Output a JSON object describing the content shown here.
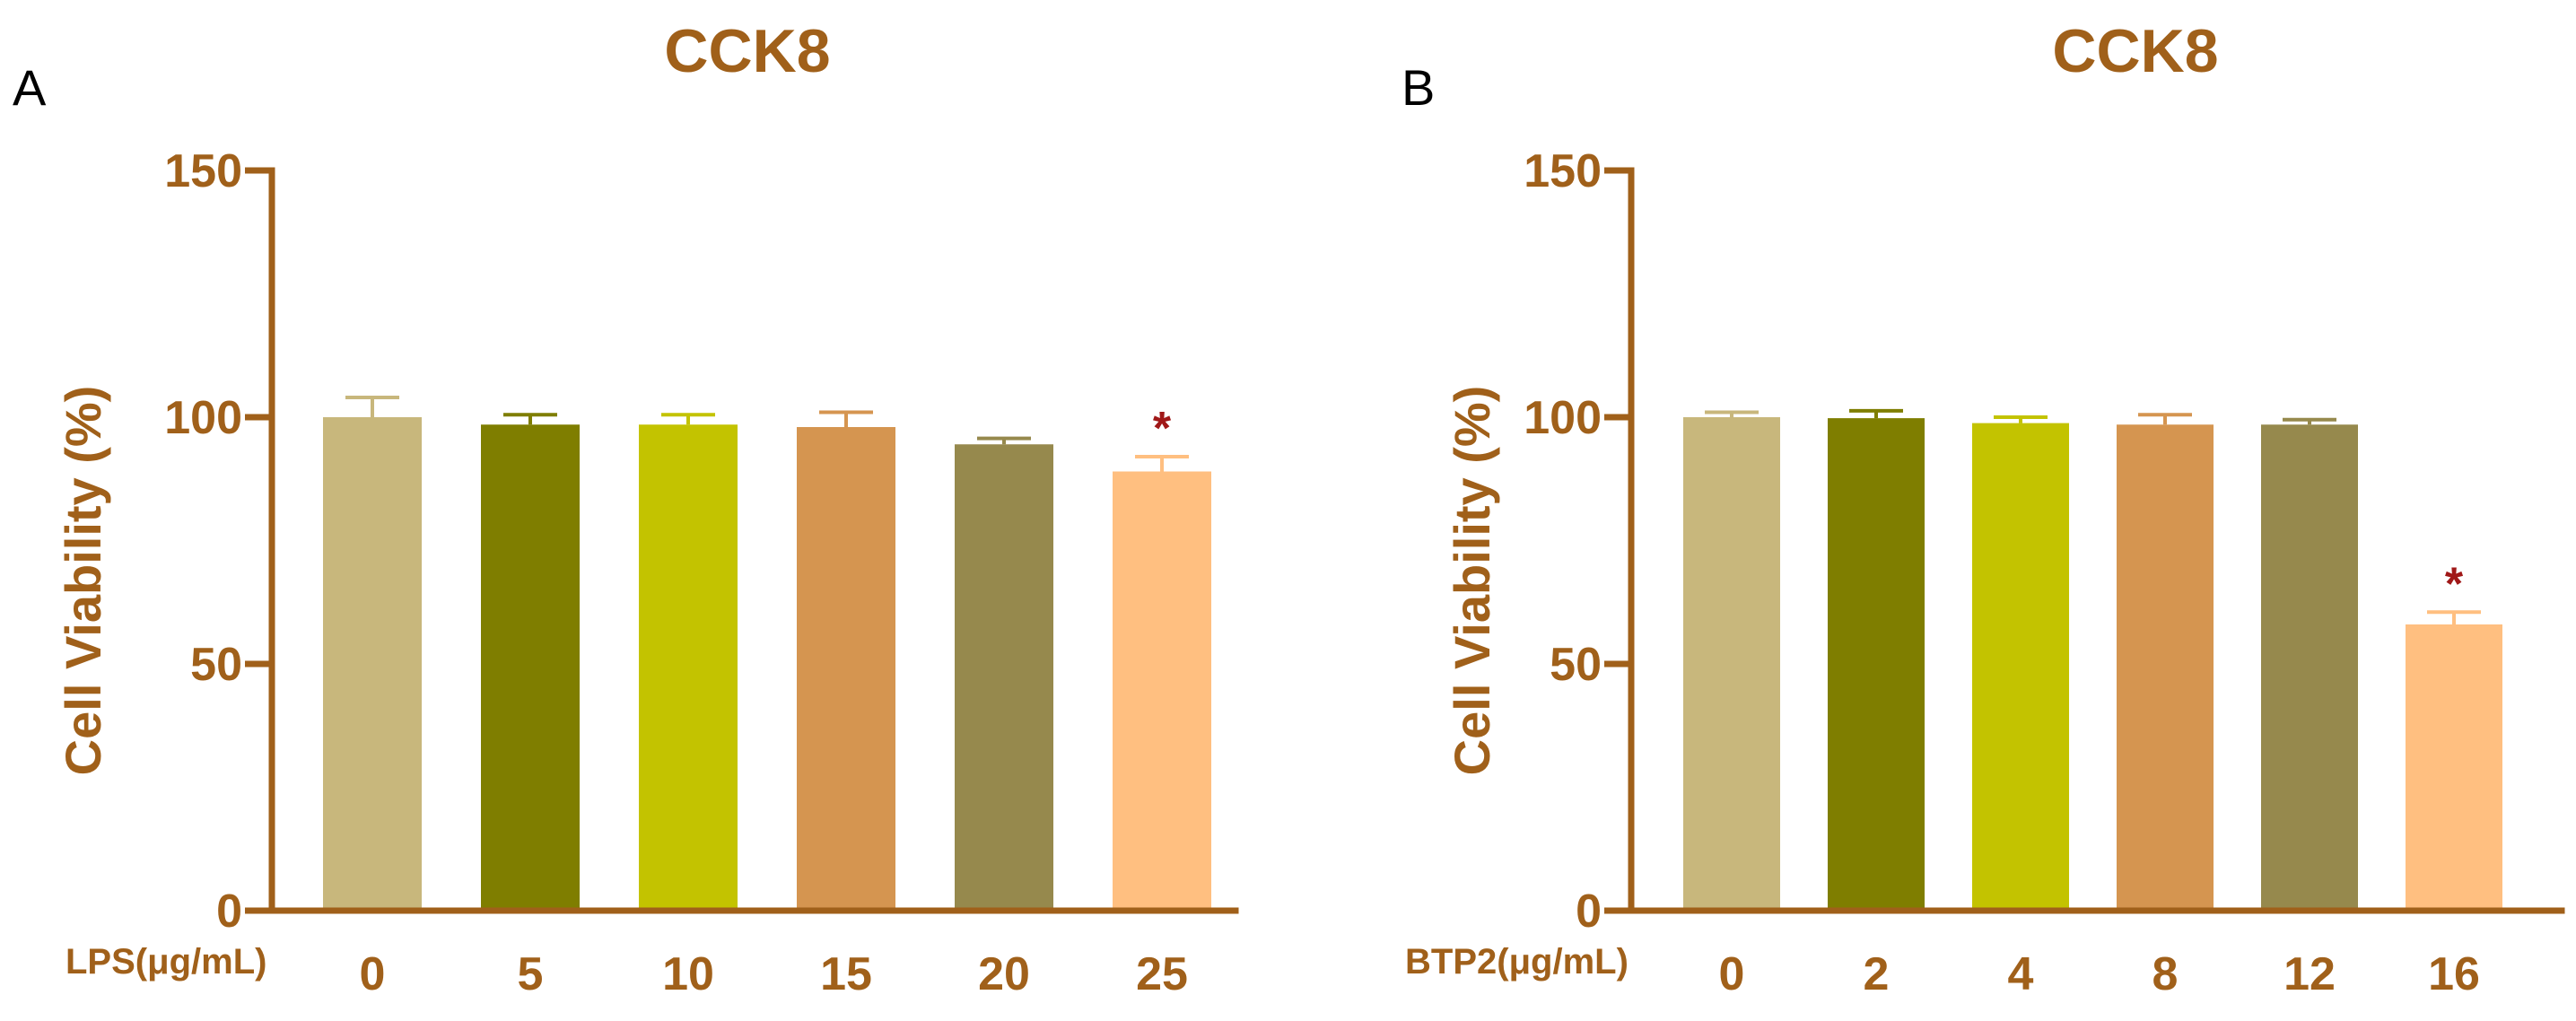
{
  "colors": {
    "axis": "#a0601a",
    "text": "#a0601a",
    "significance": "#a01818",
    "bar_fills": [
      "#c8b77c",
      "#7f7e00",
      "#c3c300",
      "#d59550",
      "#96894d",
      "#ffbf80"
    ]
  },
  "chart_data": [
    {
      "type": "bar",
      "panel": "A",
      "title": "CCK8",
      "xlabel": "LPS(μg/mL)",
      "ylabel": "Cell Viability (%)",
      "categories": [
        "0",
        "5",
        "10",
        "15",
        "20",
        "25"
      ],
      "values": [
        100,
        98.5,
        98.5,
        98,
        94.5,
        89
      ],
      "errors": [
        4,
        2,
        2,
        3,
        1.2,
        3
      ],
      "significance": [
        "",
        "",
        "",
        "",
        "",
        "*"
      ],
      "ylim": [
        0,
        150
      ],
      "yticks": [
        0,
        50,
        100,
        150
      ],
      "grid": false
    },
    {
      "type": "bar",
      "panel": "B",
      "title": "CCK8",
      "xlabel": "BTP2(μg/mL)",
      "ylabel": "Cell Viability (%)",
      "categories": [
        "0",
        "2",
        "4",
        "8",
        "12",
        "16"
      ],
      "values": [
        100,
        99.8,
        98.8,
        98.5,
        98.5,
        58
      ],
      "errors": [
        1,
        1.5,
        1.2,
        2,
        1,
        2.5
      ],
      "significance": [
        "",
        "",
        "",
        "",
        "",
        "*"
      ],
      "ylim": [
        0,
        150
      ],
      "yticks": [
        0,
        50,
        100,
        150
      ],
      "grid": false
    }
  ]
}
